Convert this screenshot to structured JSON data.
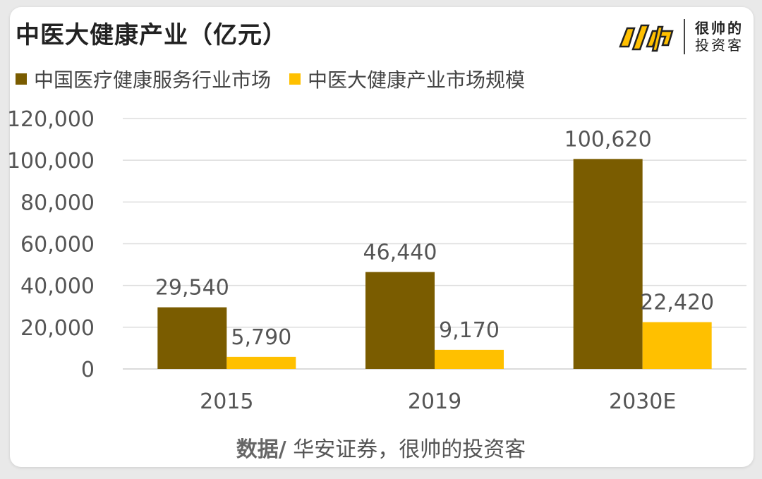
{
  "header": {
    "title": "中医大健康产业（亿元）",
    "logo_line1": "很帅的",
    "logo_line2": "投资客"
  },
  "legend": [
    {
      "label": "中国医疗健康服务行业市场",
      "color": "#7a5c00"
    },
    {
      "label": "中医大健康产业市场规模",
      "color": "#ffc000"
    }
  ],
  "chart_data": {
    "type": "bar",
    "categories": [
      "2015",
      "2019",
      "2030E"
    ],
    "series": [
      {
        "name": "中国医疗健康服务行业市场",
        "values": [
          29540,
          46440,
          100620
        ],
        "color": "#7a5c00",
        "labels": [
          "29,540",
          "46,440",
          "100,620"
        ]
      },
      {
        "name": "中医大健康产业市场规模",
        "values": [
          5790,
          9170,
          22420
        ],
        "color": "#ffc000",
        "labels": [
          "5,790",
          "9,170",
          "22,420"
        ]
      }
    ],
    "ylim": [
      0,
      120000
    ],
    "yticks": [
      0,
      20000,
      40000,
      60000,
      80000,
      100000,
      120000
    ],
    "ytick_labels": [
      "0",
      "20,000",
      "40,000",
      "60,000",
      "80,000",
      "100,000",
      "120,000"
    ],
    "grid": true,
    "legend_position": "top-left"
  },
  "footer": {
    "source_label": "数据/",
    "source_text": " 华安证券，很帅的投资客"
  }
}
